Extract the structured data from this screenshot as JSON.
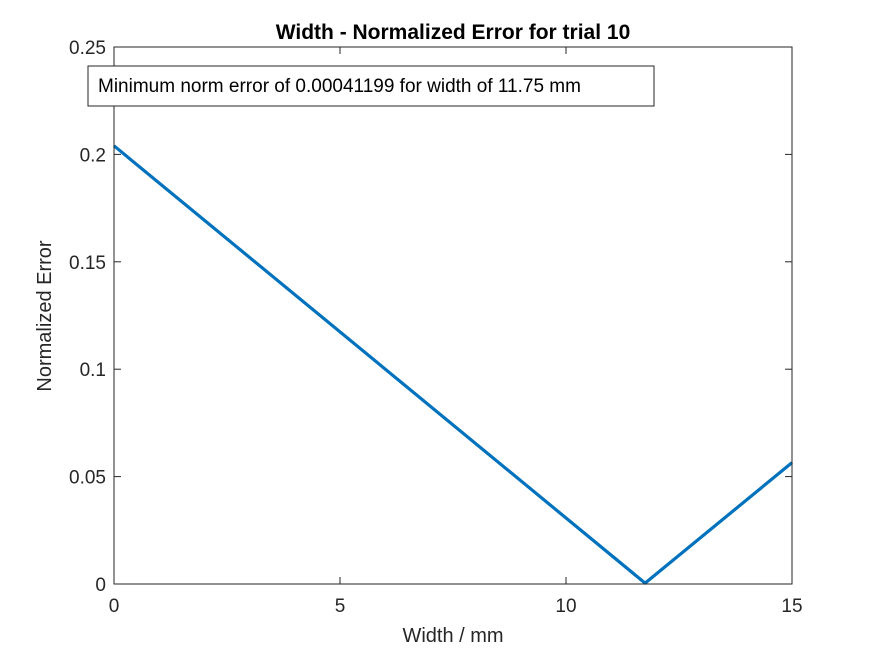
{
  "chart_data": {
    "type": "line",
    "title": "Width - Normalized Error for trial 10",
    "xlabel": "Width / mm",
    "ylabel": "Normalized Error",
    "xlim": [
      0,
      15
    ],
    "ylim": [
      0,
      0.25
    ],
    "xticks": [
      0,
      5,
      10,
      15
    ],
    "xtick_labels": [
      "0",
      "5",
      "10",
      "15"
    ],
    "yticks": [
      0,
      0.05,
      0.1,
      0.15,
      0.2,
      0.25
    ],
    "ytick_labels": [
      "0",
      "0.05",
      "0.1",
      "0.15",
      "0.2",
      "0.25"
    ],
    "grid": false,
    "series": [
      {
        "color": "#0072BD",
        "x": [
          0,
          11.75,
          15
        ],
        "y": [
          0.204,
          0.00041199,
          0.0565
        ]
      }
    ],
    "annotation": "Minimum norm error of 0.00041199 for width of 11.75 mm"
  }
}
